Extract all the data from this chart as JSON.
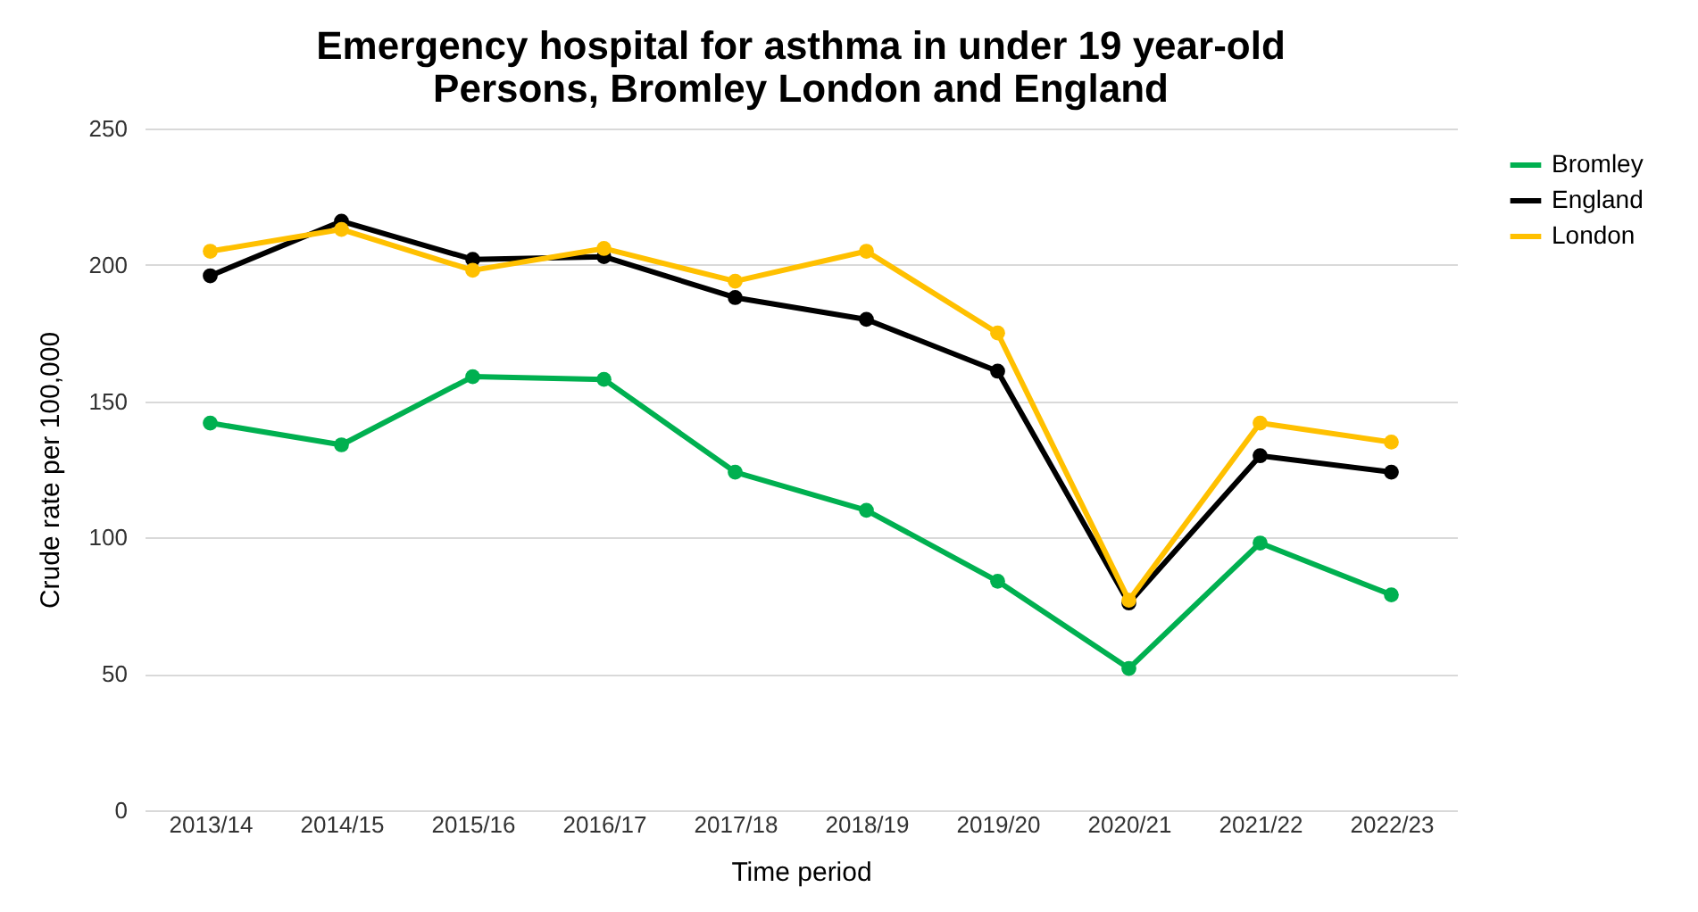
{
  "chart_data": {
    "type": "line",
    "title": "Emergency hospital for asthma in under 19 year-old\nPersons, Bromley London and England",
    "xlabel": "Time period",
    "ylabel": "Crude rate per 100,000",
    "categories": [
      "2013/14",
      "2014/15",
      "2015/16",
      "2016/17",
      "2017/18",
      "2018/19",
      "2019/20",
      "2020/21",
      "2021/22",
      "2022/23"
    ],
    "series": [
      {
        "name": "Bromley",
        "color": "#00b050",
        "values": [
          142,
          134,
          159,
          158,
          124,
          110,
          84,
          52,
          98,
          79
        ]
      },
      {
        "name": "England",
        "color": "#000000",
        "values": [
          196,
          216,
          202,
          203,
          188,
          180,
          161,
          76,
          130,
          124
        ]
      },
      {
        "name": "London",
        "color": "#ffc000",
        "values": [
          205,
          213,
          198,
          206,
          194,
          205,
          175,
          77,
          142,
          135
        ]
      }
    ],
    "ylim": [
      0,
      250
    ],
    "yticks": [
      0,
      50,
      100,
      150,
      200,
      250
    ],
    "grid": "y",
    "legend": "right",
    "marker": "circle",
    "line_style": "solid"
  }
}
